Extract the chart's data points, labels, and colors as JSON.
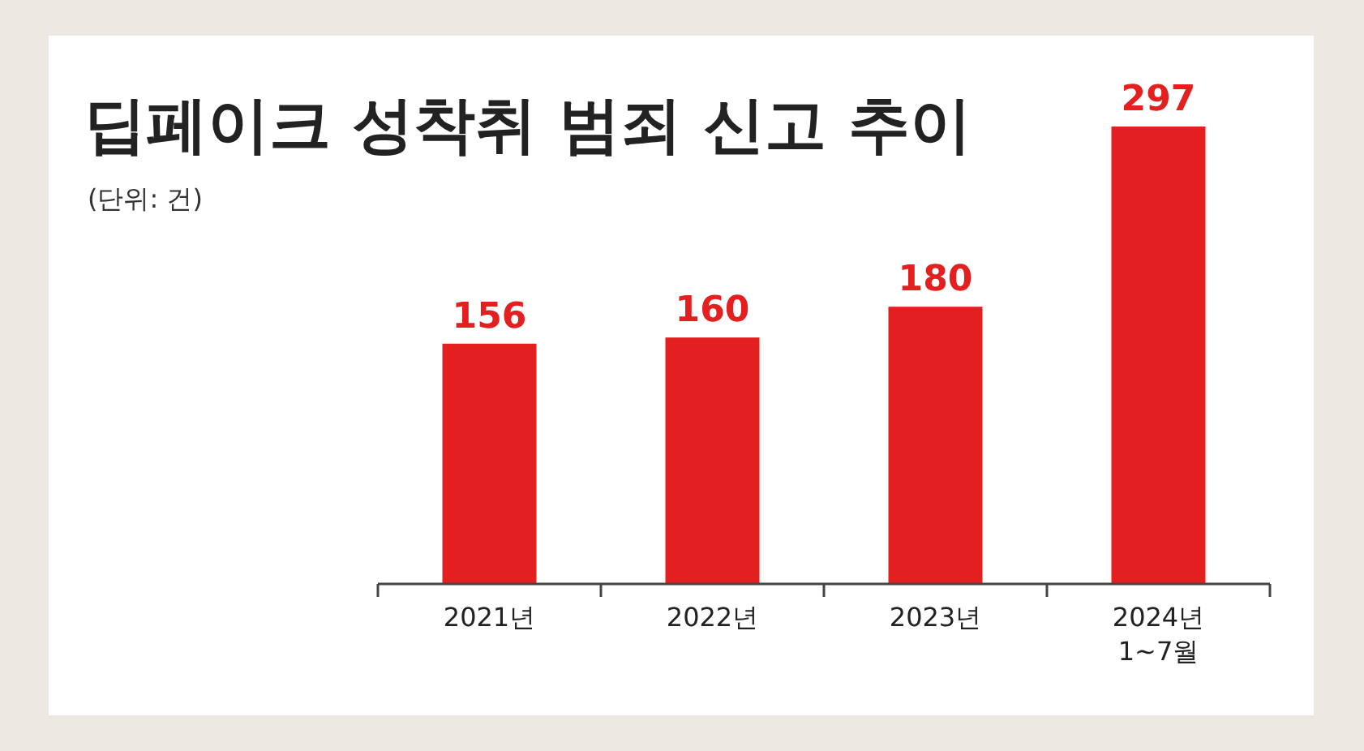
{
  "chart_data": {
    "type": "bar",
    "title": "딥페이크 성착취 범죄 신고 추이",
    "subtitle": "(단위: 건)",
    "categories": [
      "2021년",
      "2022년",
      "2023년",
      "2024년\n1~7월"
    ],
    "values": [
      156,
      160,
      180,
      297
    ],
    "color": "#e3201f",
    "data_labels": true
  }
}
